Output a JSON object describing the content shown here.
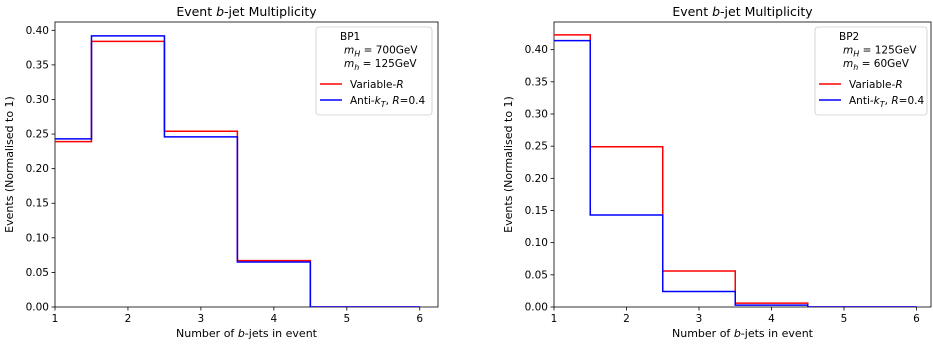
{
  "chart_data": [
    {
      "type": "line",
      "style": "step",
      "title": "Event b-jet Multiplicity",
      "xlabel": "Number of b-jets in event",
      "ylabel": "Events (Normalised to 1)",
      "xlim": [
        1,
        6.25
      ],
      "ylim": [
        0,
        0.412
      ],
      "xticks": [
        1,
        2,
        3,
        4,
        5,
        6
      ],
      "yticks": [
        0.0,
        0.05,
        0.1,
        0.15,
        0.2,
        0.25,
        0.3,
        0.35,
        0.4
      ],
      "ytick_labels": [
        "0.00",
        "0.05",
        "0.10",
        "0.15",
        "0.20",
        "0.25",
        "0.30",
        "0.35",
        "0.40"
      ],
      "bin_edges": [
        1,
        1.5,
        2.5,
        3.5,
        4.5,
        6
      ],
      "legend_title": [
        "BP1",
        "m_H = 700GeV",
        "m_h = 125GeV"
      ],
      "series": [
        {
          "name": "Variable-R",
          "color": "#ff0000",
          "values": [
            0.239,
            0.384,
            0.254,
            0.067,
            0.0
          ]
        },
        {
          "name": "Anti-k_T, R=0.4",
          "color": "#0000ff",
          "values": [
            0.243,
            0.392,
            0.246,
            0.065,
            0.0
          ]
        }
      ],
      "legend_position": "top-right"
    },
    {
      "type": "line",
      "style": "step",
      "title": "Event b-jet Multiplicity",
      "xlabel": "Number of b-jets in event",
      "ylabel": "Events (Normalised to 1)",
      "xlim": [
        1,
        6.2
      ],
      "ylim": [
        0,
        0.443
      ],
      "xticks": [
        1,
        2,
        3,
        4,
        5,
        6
      ],
      "yticks": [
        0.0,
        0.05,
        0.1,
        0.15,
        0.2,
        0.25,
        0.3,
        0.35,
        0.4
      ],
      "ytick_labels": [
        "0.00",
        "0.05",
        "0.10",
        "0.15",
        "0.20",
        "0.25",
        "0.30",
        "0.35",
        "0.40"
      ],
      "bin_edges": [
        1,
        1.5,
        2.5,
        3.5,
        4.5,
        6
      ],
      "legend_title": [
        "BP2",
        "m_H = 125GeV",
        "m_h = 60GeV"
      ],
      "series": [
        {
          "name": "Variable-R",
          "color": "#ff0000",
          "values": [
            0.423,
            0.249,
            0.056,
            0.006,
            0.0
          ]
        },
        {
          "name": "Anti-k_T, R=0.4",
          "color": "#0000ff",
          "values": [
            0.414,
            0.143,
            0.024,
            0.003,
            0.0
          ]
        }
      ],
      "legend_position": "top-right"
    }
  ]
}
